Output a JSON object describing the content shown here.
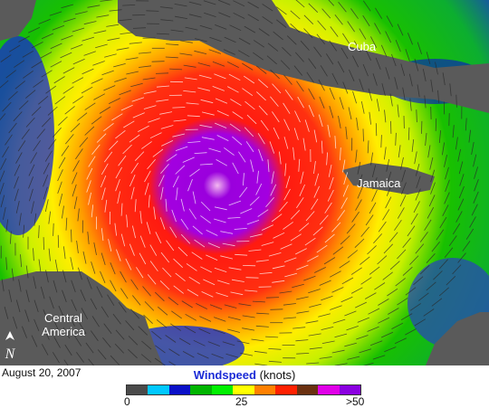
{
  "map": {
    "labels": {
      "cuba": "Cuba",
      "jamaica": "Jamaica",
      "central_america_line1": "Central",
      "central_america_line2": "America"
    },
    "north_arrow": "N",
    "date": "August 20, 2007",
    "colors": {
      "land": "#5a5a5a",
      "calm": "#1a1acc",
      "hurricane_core": "#9a00dd",
      "eye": "#f2b8f0"
    }
  },
  "legend": {
    "title": "Windspeed",
    "unit": "(knots)",
    "ticks": [
      "0",
      "25",
      ">50"
    ],
    "colors": [
      "#4a4a4a",
      "#00c8ff",
      "#0a10c8",
      "#00b400",
      "#00f000",
      "#ffff00",
      "#ff8000",
      "#ff2000",
      "#6a3010",
      "#e000e8",
      "#8a00e0"
    ]
  }
}
